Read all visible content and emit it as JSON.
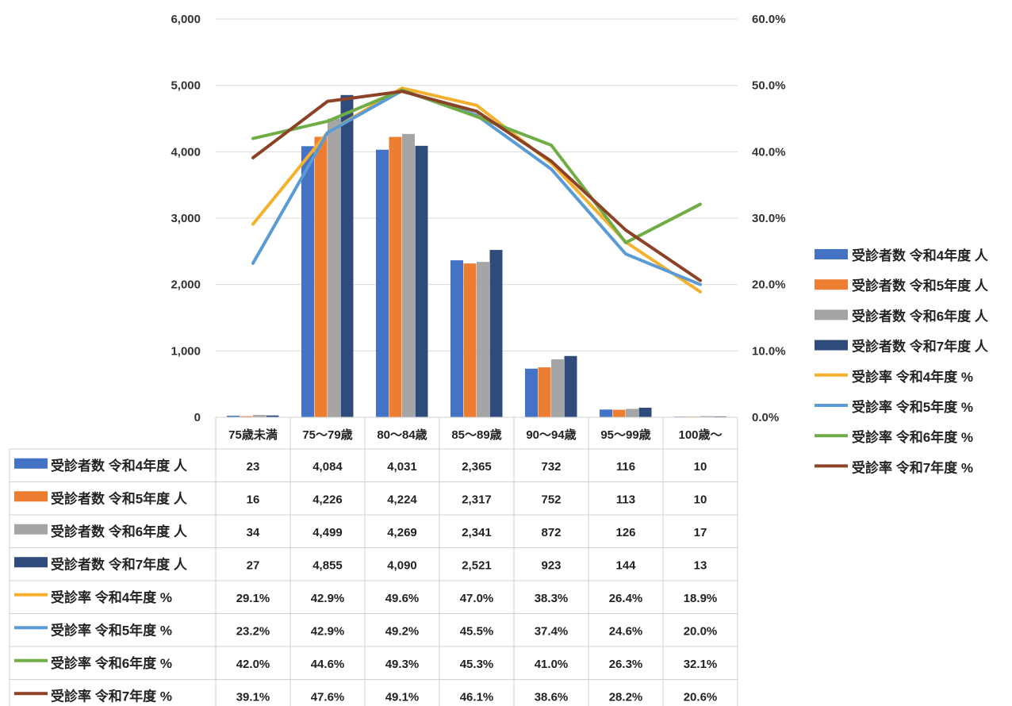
{
  "chart_data": {
    "type": "bar",
    "categories": [
      "75歳未満",
      "75～79歳",
      "80～84歳",
      "85～89歳",
      "90～94歳",
      "95～99歳",
      "100歳～"
    ],
    "y_left": {
      "ticks": [
        "0",
        "1,000",
        "2,000",
        "3,000",
        "4,000",
        "5,000",
        "6,000"
      ],
      "lim": [
        0,
        6000
      ]
    },
    "y_right": {
      "ticks": [
        "0.0%",
        "10.0%",
        "20.0%",
        "30.0%",
        "40.0%",
        "50.0%",
        "60.0%"
      ],
      "lim": [
        0,
        60
      ]
    },
    "legend_position": "right",
    "bar_series": [
      {
        "name": "受診者数 令和4年度 人",
        "color": "#4472C4",
        "values": [
          23,
          4084,
          4031,
          2365,
          732,
          116,
          10
        ],
        "labels": [
          "23",
          "4,084",
          "4,031",
          "2,365",
          "732",
          "116",
          "10"
        ]
      },
      {
        "name": "受診者数 令和5年度 人",
        "color": "#ED7D31",
        "values": [
          16,
          4226,
          4224,
          2317,
          752,
          113,
          10
        ],
        "labels": [
          "16",
          "4,226",
          "4,224",
          "2,317",
          "752",
          "113",
          "10"
        ]
      },
      {
        "name": "受診者数 令和6年度 人",
        "color": "#A5A5A5",
        "values": [
          34,
          4499,
          4269,
          2341,
          872,
          126,
          17
        ],
        "labels": [
          "34",
          "4,499",
          "4,269",
          "2,341",
          "872",
          "126",
          "17"
        ]
      },
      {
        "name": "受診者数 令和7年度 人",
        "color": "#2F4B7C",
        "values": [
          27,
          4855,
          4090,
          2521,
          923,
          144,
          13
        ],
        "labels": [
          "27",
          "4,855",
          "4,090",
          "2,521",
          "923",
          "144",
          "13"
        ]
      }
    ],
    "line_series": [
      {
        "name": "受診率 令和4年度 %",
        "color": "#F5B02E",
        "values": [
          29.1,
          42.9,
          49.6,
          47.0,
          38.3,
          26.4,
          18.9
        ],
        "labels": [
          "29.1%",
          "42.9%",
          "49.6%",
          "47.0%",
          "38.3%",
          "26.4%",
          "18.9%"
        ]
      },
      {
        "name": "受診率 令和5年度 %",
        "color": "#5B9BD5",
        "values": [
          23.2,
          42.9,
          49.2,
          45.5,
          37.4,
          24.6,
          20.0
        ],
        "labels": [
          "23.2%",
          "42.9%",
          "49.2%",
          "45.5%",
          "37.4%",
          "24.6%",
          "20.0%"
        ]
      },
      {
        "name": "受診率 令和6年度 %",
        "color": "#70AD47",
        "values": [
          42.0,
          44.6,
          49.3,
          45.3,
          41.0,
          26.3,
          32.1
        ],
        "labels": [
          "42.0%",
          "44.6%",
          "49.3%",
          "45.3%",
          "41.0%",
          "26.3%",
          "32.1%"
        ]
      },
      {
        "name": "受診率 令和7年度 %",
        "color": "#8B4226",
        "values": [
          39.1,
          47.6,
          49.1,
          46.1,
          38.6,
          28.2,
          20.6
        ],
        "labels": [
          "39.1%",
          "47.6%",
          "49.1%",
          "46.1%",
          "38.6%",
          "28.2%",
          "20.6%"
        ]
      }
    ]
  }
}
